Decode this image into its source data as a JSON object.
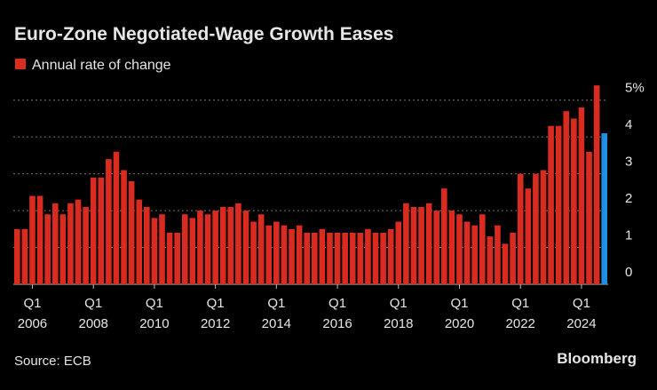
{
  "chart_data": {
    "type": "bar",
    "title": "Euro-Zone Negotiated-Wage Growth Eases",
    "legend": "Annual rate of change",
    "source": "Source: ECB",
    "brand": "Bloomberg",
    "color": "#d92b20",
    "highlight_color": "#1f8fe5",
    "highlight_last": true,
    "grid": true,
    "categories": [
      null,
      null,
      [
        "Q1",
        "2006"
      ],
      null,
      null,
      null,
      null,
      null,
      null,
      null,
      [
        "Q1",
        "2008"
      ],
      null,
      null,
      null,
      null,
      null,
      null,
      null,
      [
        "Q1",
        "2010"
      ],
      null,
      null,
      null,
      null,
      null,
      null,
      null,
      [
        "Q1",
        "2012"
      ],
      null,
      null,
      null,
      null,
      null,
      null,
      null,
      [
        "Q1",
        "2014"
      ],
      null,
      null,
      null,
      null,
      null,
      null,
      null,
      [
        "Q1",
        "2016"
      ],
      null,
      null,
      null,
      null,
      null,
      null,
      null,
      [
        "Q1",
        "2018"
      ],
      null,
      null,
      null,
      null,
      null,
      null,
      null,
      [
        "Q1",
        "2020"
      ],
      null,
      null,
      null,
      null,
      null,
      null,
      null,
      [
        "Q1",
        "2022"
      ],
      null,
      null,
      null,
      null,
      null,
      null,
      null,
      [
        "Q1",
        "2024"
      ],
      null,
      null,
      null
    ],
    "values": [
      1.5,
      1.5,
      2.4,
      2.4,
      1.9,
      2.2,
      1.9,
      2.2,
      2.3,
      2.1,
      2.9,
      2.9,
      3.4,
      3.6,
      3.1,
      2.8,
      2.3,
      2.1,
      1.8,
      1.9,
      1.4,
      1.4,
      1.9,
      1.8,
      2.0,
      1.9,
      2.0,
      2.1,
      2.1,
      2.2,
      2.0,
      1.7,
      1.9,
      1.6,
      1.7,
      1.6,
      1.5,
      1.6,
      1.4,
      1.4,
      1.5,
      1.4,
      1.4,
      1.4,
      1.4,
      1.4,
      1.5,
      1.4,
      1.4,
      1.5,
      1.7,
      2.2,
      2.1,
      2.1,
      2.2,
      2.0,
      2.6,
      2.0,
      1.9,
      1.7,
      1.6,
      1.9,
      1.3,
      1.6,
      1.1,
      1.4,
      3.0,
      2.6,
      3.0,
      3.1,
      4.3,
      4.3,
      4.7,
      4.5,
      4.8,
      3.6,
      5.4,
      4.1
    ],
    "ylim": [
      0,
      5.5
    ],
    "yticks": [
      0,
      1,
      2,
      3,
      4,
      {
        "value": 5,
        "label": "5%"
      }
    ]
  }
}
